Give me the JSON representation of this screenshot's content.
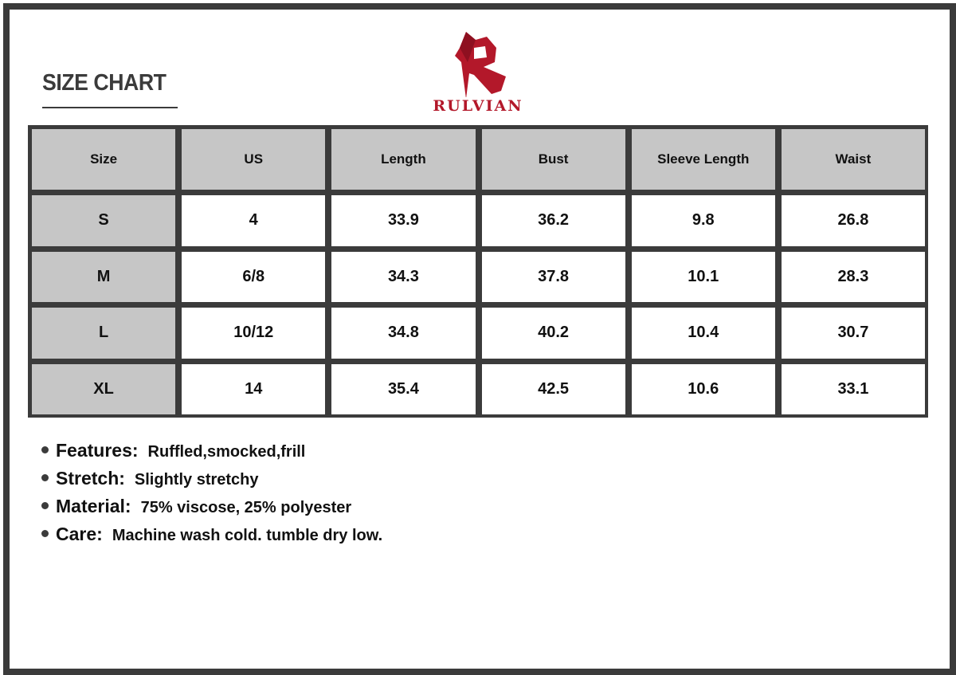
{
  "title": "SIZE CHART",
  "brand": {
    "name": "RULVIAN",
    "color": "#b3182a"
  },
  "table": {
    "headers": [
      "Size",
      "US",
      "Length",
      "Bust",
      "Sleeve Length",
      "Waist"
    ],
    "rows": [
      [
        "S",
        "4",
        "33.9",
        "36.2",
        "9.8",
        "26.8"
      ],
      [
        "M",
        "6/8",
        "34.3",
        "37.8",
        "10.1",
        "28.3"
      ],
      [
        "L",
        "10/12",
        "34.8",
        "40.2",
        "10.4",
        "30.7"
      ],
      [
        "XL",
        "14",
        "35.4",
        "42.5",
        "10.6",
        "33.1"
      ]
    ]
  },
  "features": [
    {
      "label": "Features:",
      "value": "Ruffled,smocked,frill"
    },
    {
      "label": "Stretch:",
      "value": "Slightly stretchy"
    },
    {
      "label": "Material:",
      "value": "75% viscose, 25% polyester"
    },
    {
      "label": "Care:",
      "value": "Machine wash cold. tumble dry low."
    }
  ]
}
